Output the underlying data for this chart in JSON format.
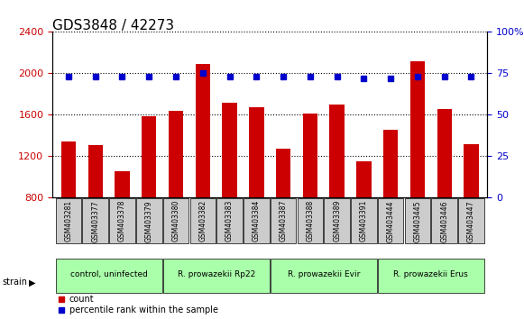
{
  "title": "GDS3848 / 42273",
  "samples": [
    "GSM403281",
    "GSM403377",
    "GSM403378",
    "GSM403379",
    "GSM403380",
    "GSM403382",
    "GSM403383",
    "GSM403384",
    "GSM403387",
    "GSM403388",
    "GSM403389",
    "GSM403391",
    "GSM403444",
    "GSM403445",
    "GSM403446",
    "GSM403447"
  ],
  "counts": [
    1340,
    1310,
    1060,
    1590,
    1640,
    2090,
    1720,
    1670,
    1270,
    1610,
    1700,
    1150,
    1460,
    2120,
    1660,
    1320
  ],
  "percentiles": [
    73,
    73,
    73,
    73,
    73,
    75,
    73,
    73,
    73,
    73,
    73,
    72,
    72,
    73,
    73,
    73
  ],
  "bar_color": "#cc0000",
  "dot_color": "#0000cc",
  "ylim_left": [
    800,
    2400
  ],
  "ylim_right": [
    0,
    100
  ],
  "yticks_left": [
    800,
    1200,
    1600,
    2000,
    2400
  ],
  "yticks_right": [
    0,
    25,
    50,
    75,
    100
  ],
  "grid_color": "#000000",
  "bg_color": "#ffffff",
  "plot_bg": "#ffffff",
  "strain_groups": [
    {
      "label": "control, uninfected",
      "start": 0,
      "end": 3,
      "color": "#aaffaa"
    },
    {
      "label": "R. prowazekii Rp22",
      "start": 4,
      "end": 7,
      "color": "#aaffaa"
    },
    {
      "label": "R. prowazekii Evir",
      "start": 8,
      "end": 11,
      "color": "#aaffaa"
    },
    {
      "label": "R. prowazekii Erus",
      "start": 12,
      "end": 15,
      "color": "#aaffaa"
    }
  ],
  "legend_count_label": "count",
  "legend_pct_label": "percentile rank within the sample",
  "strain_label": "strain",
  "title_color": "#000000",
  "left_axis_color": "#cc0000",
  "right_axis_color": "#0000cc",
  "tick_label_color_left": "#cc0000",
  "tick_label_color_right": "#0000cc",
  "xlabel_bg": "#cccccc"
}
